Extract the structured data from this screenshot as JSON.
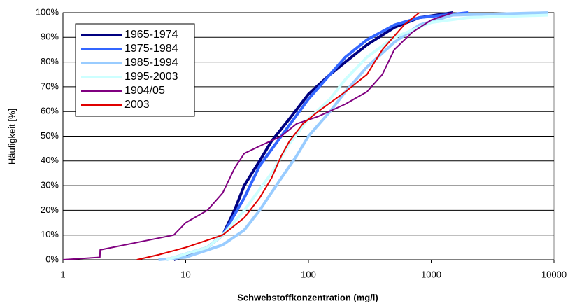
{
  "chart_data": {
    "type": "line",
    "xscale": "log",
    "grid": true,
    "legend": "upper left",
    "xlabel": "Schwebstoffkonzentration (mg/l)",
    "ylabel": "Häufigkeit [%]",
    "xlim": [
      1,
      10000
    ],
    "xticks": [
      1,
      10,
      100,
      1000,
      10000
    ],
    "ylim": [
      0,
      100
    ],
    "yticks": [
      {
        "value": 0,
        "label": "0%"
      },
      {
        "value": 10,
        "label": "10%"
      },
      {
        "value": 20,
        "label": "20%"
      },
      {
        "value": 30,
        "label": "30%"
      },
      {
        "value": 40,
        "label": "40%"
      },
      {
        "value": 50,
        "label": "50%"
      },
      {
        "value": 60,
        "label": "60%"
      },
      {
        "value": 70,
        "label": "70%"
      },
      {
        "value": 80,
        "label": "80%"
      },
      {
        "value": 90,
        "label": "90%"
      },
      {
        "value": 100,
        "label": "100%"
      }
    ],
    "series": [
      {
        "name": "1965-1974",
        "color": "#000080",
        "width": 4,
        "x": [
          8,
          15,
          20,
          25,
          30,
          40,
          50,
          70,
          100,
          150,
          200,
          300,
          500,
          800,
          1500
        ],
        "values": [
          0,
          5,
          10,
          20,
          30,
          40,
          48,
          57,
          67,
          75,
          80,
          87,
          94,
          98,
          100
        ]
      },
      {
        "name": "1975-1984",
        "color": "#3366ff",
        "width": 4,
        "x": [
          7,
          15,
          20,
          30,
          40,
          60,
          100,
          150,
          200,
          300,
          500,
          800,
          2000
        ],
        "values": [
          0,
          5,
          10,
          25,
          38,
          50,
          65,
          75,
          82,
          89,
          95,
          98,
          100
        ]
      },
      {
        "name": "1985-1994",
        "color": "#99ccff",
        "width": 4,
        "x": [
          6,
          10,
          20,
          30,
          40,
          60,
          80,
          100,
          150,
          200,
          300,
          500,
          800,
          1500,
          9000
        ],
        "values": [
          0,
          1,
          6,
          12,
          20,
          33,
          42,
          50,
          60,
          68,
          78,
          88,
          95,
          99,
          100
        ]
      },
      {
        "name": "1995-2003",
        "color": "#ccffff",
        "width": 4,
        "x": [
          7,
          15,
          20,
          30,
          50,
          70,
          100,
          150,
          200,
          300,
          500,
          1000,
          2000,
          9000
        ],
        "values": [
          0,
          5,
          10,
          20,
          35,
          47,
          57,
          65,
          73,
          82,
          90,
          96,
          98,
          99
        ]
      },
      {
        "name": "1904/05",
        "color": "#800080",
        "width": 2,
        "x": [
          1,
          2,
          2.01,
          4,
          8,
          10,
          15,
          20,
          25,
          30,
          40,
          60,
          80,
          120,
          200,
          300,
          400,
          500,
          700,
          1000,
          1500
        ],
        "values": [
          0,
          1,
          4,
          7,
          10,
          15,
          20,
          27,
          37,
          43,
          46,
          50,
          55,
          58,
          63,
          68,
          75,
          85,
          92,
          97,
          100
        ]
      },
      {
        "name": "2003",
        "color": "#e00000",
        "width": 2,
        "x": [
          4,
          6,
          10,
          20,
          30,
          40,
          50,
          60,
          70,
          90,
          120,
          200,
          300,
          400,
          600,
          800
        ],
        "values": [
          0,
          2,
          5,
          10,
          17,
          25,
          33,
          42,
          48,
          55,
          60,
          68,
          75,
          85,
          95,
          100
        ]
      }
    ]
  }
}
